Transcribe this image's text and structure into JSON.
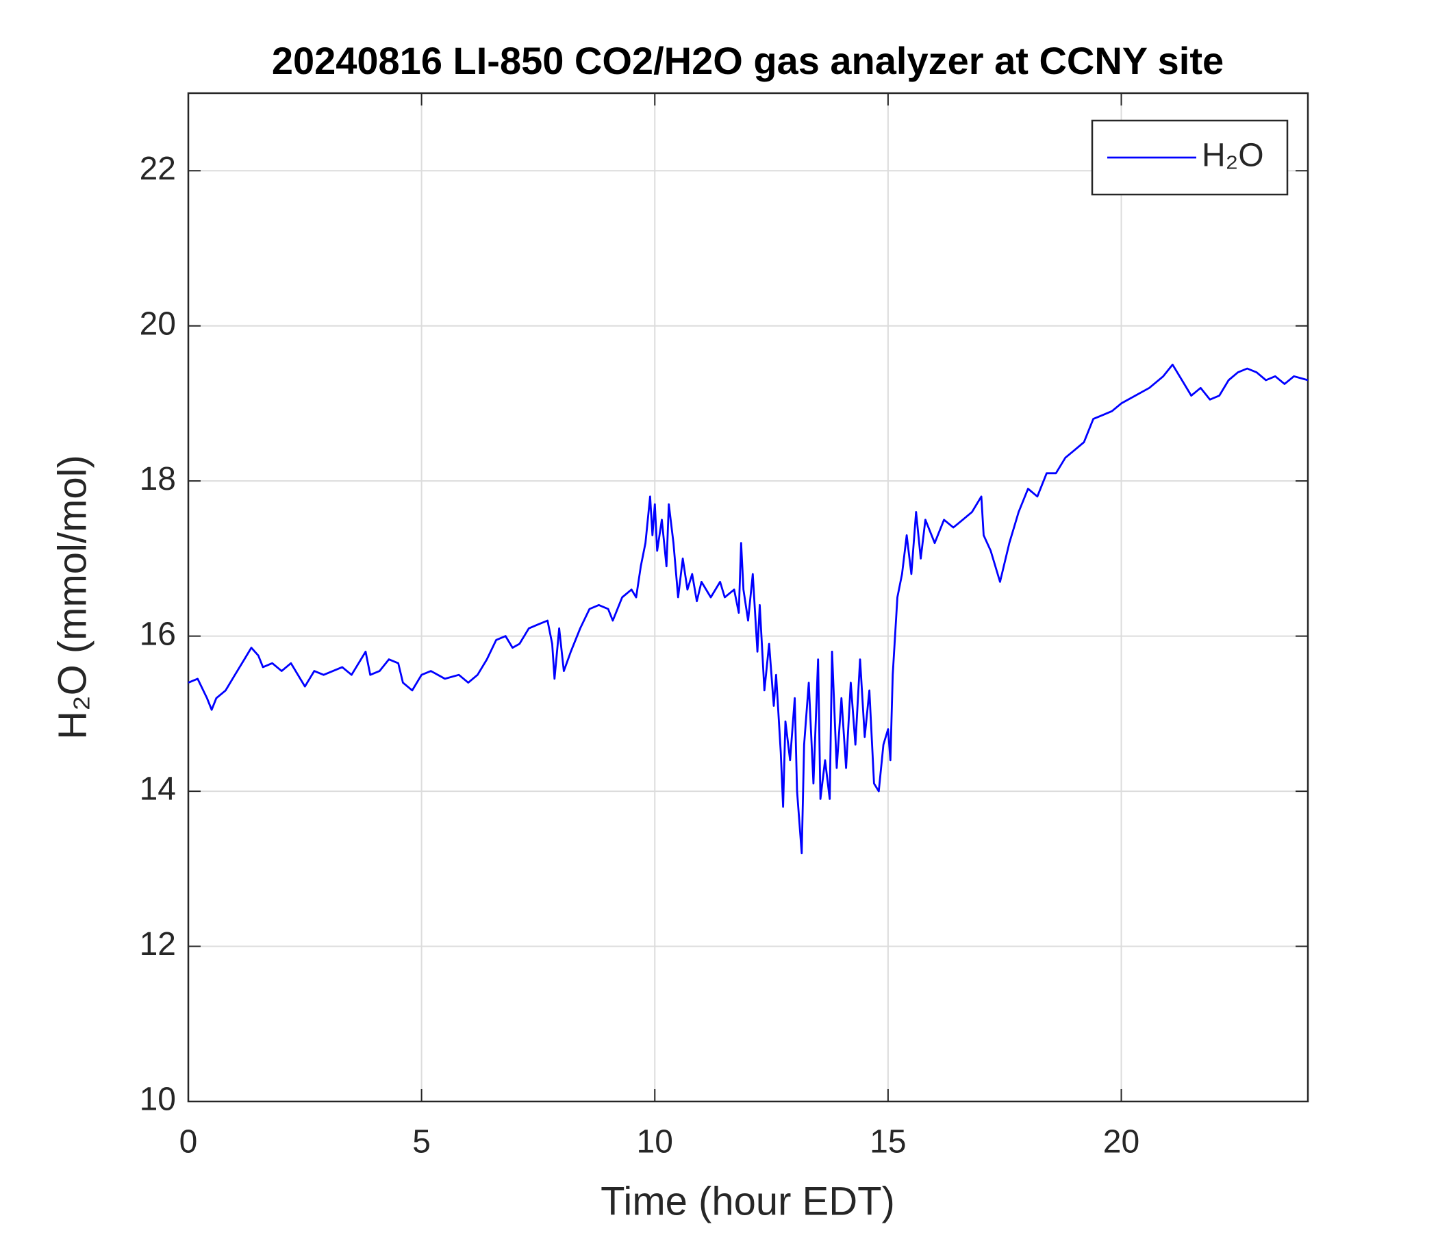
{
  "chart_data": {
    "type": "line",
    "title": "20240816 LI-850 CO2/H2O gas analyzer at CCNY site",
    "xlabel": "Time (hour EDT)",
    "ylabel": "H₂O (mmol/mol)",
    "x": [
      0,
      0.2,
      0.4,
      0.5,
      0.6,
      0.8,
      1.0,
      1.2,
      1.35,
      1.5,
      1.6,
      1.8,
      2.0,
      2.2,
      2.4,
      2.5,
      2.7,
      2.9,
      3.1,
      3.3,
      3.5,
      3.7,
      3.8,
      3.9,
      4.1,
      4.3,
      4.5,
      4.6,
      4.8,
      5.0,
      5.2,
      5.5,
      5.8,
      6.0,
      6.2,
      6.4,
      6.6,
      6.8,
      6.95,
      7.1,
      7.3,
      7.5,
      7.7,
      7.8,
      7.85,
      7.95,
      8.05,
      8.2,
      8.4,
      8.6,
      8.8,
      9.0,
      9.1,
      9.3,
      9.5,
      9.6,
      9.7,
      9.8,
      9.85,
      9.9,
      9.95,
      10.0,
      10.05,
      10.15,
      10.25,
      10.3,
      10.4,
      10.5,
      10.6,
      10.7,
      10.8,
      10.9,
      11.0,
      11.2,
      11.4,
      11.5,
      11.7,
      11.8,
      11.85,
      11.9,
      12.0,
      12.1,
      12.2,
      12.25,
      12.35,
      12.45,
      12.55,
      12.6,
      12.7,
      12.75,
      12.8,
      12.9,
      13.0,
      13.05,
      13.1,
      13.15,
      13.2,
      13.3,
      13.4,
      13.5,
      13.55,
      13.65,
      13.75,
      13.8,
      13.9,
      14.0,
      14.1,
      14.2,
      14.3,
      14.4,
      14.5,
      14.6,
      14.7,
      14.8,
      14.9,
      15.0,
      15.05,
      15.1,
      15.2,
      15.3,
      15.4,
      15.5,
      15.6,
      15.7,
      15.8,
      16.0,
      16.2,
      16.4,
      16.6,
      16.8,
      16.9,
      17.0,
      17.05,
      17.2,
      17.4,
      17.6,
      17.8,
      18.0,
      18.2,
      18.4,
      18.6,
      18.8,
      19.0,
      19.2,
      19.4,
      19.6,
      19.8,
      20.0,
      20.3,
      20.6,
      20.9,
      21.1,
      21.3,
      21.5,
      21.7,
      21.9,
      22.1,
      22.3,
      22.5,
      22.7,
      22.9,
      23.1,
      23.3,
      23.5,
      23.7,
      24.0
    ],
    "series": [
      {
        "name": "H₂O",
        "color": "#0000ff",
        "values": [
          15.4,
          15.45,
          15.2,
          15.05,
          15.2,
          15.3,
          15.5,
          15.7,
          15.85,
          15.75,
          15.6,
          15.65,
          15.55,
          15.65,
          15.45,
          15.35,
          15.55,
          15.5,
          15.55,
          15.6,
          15.5,
          15.7,
          15.8,
          15.5,
          15.55,
          15.7,
          15.65,
          15.4,
          15.3,
          15.5,
          15.55,
          15.45,
          15.5,
          15.4,
          15.5,
          15.7,
          15.95,
          16.0,
          15.85,
          15.9,
          16.1,
          16.15,
          16.2,
          15.9,
          15.45,
          16.1,
          15.55,
          15.8,
          16.1,
          16.35,
          16.4,
          16.35,
          16.2,
          16.5,
          16.6,
          16.5,
          16.9,
          17.2,
          17.5,
          17.8,
          17.3,
          17.7,
          17.1,
          17.5,
          16.9,
          17.7,
          17.2,
          16.5,
          17.0,
          16.6,
          16.8,
          16.45,
          16.7,
          16.5,
          16.7,
          16.5,
          16.6,
          16.3,
          17.2,
          16.6,
          16.2,
          16.8,
          15.8,
          16.4,
          15.3,
          15.9,
          15.1,
          15.5,
          14.5,
          13.8,
          14.9,
          14.4,
          15.2,
          14.0,
          13.6,
          13.2,
          14.6,
          15.4,
          14.1,
          15.7,
          13.9,
          14.4,
          13.9,
          15.8,
          14.3,
          15.2,
          14.3,
          15.4,
          14.6,
          15.7,
          14.7,
          15.3,
          14.1,
          14.0,
          14.6,
          14.8,
          14.4,
          15.5,
          16.5,
          16.8,
          17.3,
          16.8,
          17.6,
          17.0,
          17.5,
          17.2,
          17.5,
          17.4,
          17.5,
          17.6,
          17.7,
          17.8,
          17.3,
          17.1,
          16.7,
          17.2,
          17.6,
          17.9,
          17.8,
          18.1,
          18.1,
          18.3,
          18.4,
          18.5,
          18.8,
          18.85,
          18.9,
          19.0,
          19.1,
          19.2,
          19.35,
          19.5,
          19.3,
          19.1,
          19.2,
          19.05,
          19.1,
          19.3,
          19.4,
          19.45,
          19.4,
          19.3,
          19.35,
          19.25,
          19.35,
          19.3
        ]
      }
    ],
    "xlim": [
      0,
      24
    ],
    "xticks": [
      0,
      5,
      10,
      15,
      20
    ],
    "ylim": [
      10,
      23
    ],
    "yticks": [
      10,
      12,
      14,
      16,
      18,
      20,
      22
    ],
    "grid": true,
    "legend": "upper right"
  }
}
